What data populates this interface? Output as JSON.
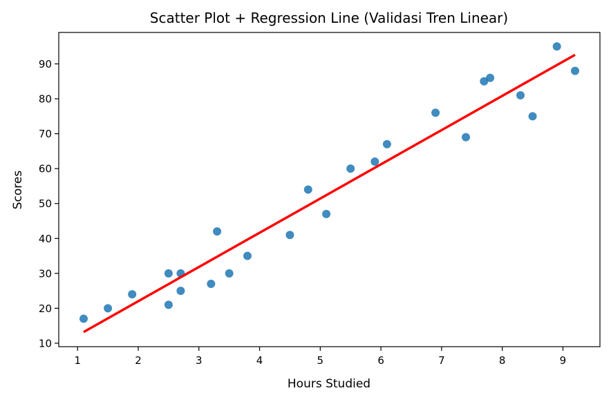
{
  "chart_data": {
    "type": "scatter",
    "title": "Scatter Plot + Regression Line (Validasi Tren Linear)",
    "xlabel": "Hours Studied",
    "ylabel": "Scores",
    "xlim": [
      0.69,
      9.61
    ],
    "ylim": [
      9.0,
      99.0
    ],
    "x_ticks": [
      1,
      2,
      3,
      4,
      5,
      6,
      7,
      8,
      9
    ],
    "y_ticks": [
      10,
      20,
      30,
      40,
      50,
      60,
      70,
      80,
      90
    ],
    "grid": false,
    "series": [
      {
        "type": "scatter",
        "color": "#1f77b4",
        "points": [
          {
            "x": 1.1,
            "y": 17
          },
          {
            "x": 1.5,
            "y": 20
          },
          {
            "x": 1.9,
            "y": 24
          },
          {
            "x": 2.5,
            "y": 21
          },
          {
            "x": 2.5,
            "y": 30
          },
          {
            "x": 2.7,
            "y": 25
          },
          {
            "x": 2.7,
            "y": 30
          },
          {
            "x": 3.2,
            "y": 27
          },
          {
            "x": 3.3,
            "y": 42
          },
          {
            "x": 3.5,
            "y": 30
          },
          {
            "x": 3.8,
            "y": 35
          },
          {
            "x": 4.5,
            "y": 41
          },
          {
            "x": 4.8,
            "y": 54
          },
          {
            "x": 5.1,
            "y": 47
          },
          {
            "x": 5.5,
            "y": 60
          },
          {
            "x": 5.9,
            "y": 62
          },
          {
            "x": 6.1,
            "y": 67
          },
          {
            "x": 6.9,
            "y": 76
          },
          {
            "x": 7.4,
            "y": 69
          },
          {
            "x": 7.7,
            "y": 85
          },
          {
            "x": 7.8,
            "y": 86
          },
          {
            "x": 8.3,
            "y": 81
          },
          {
            "x": 8.5,
            "y": 75
          },
          {
            "x": 8.9,
            "y": 95
          },
          {
            "x": 9.2,
            "y": 88
          }
        ]
      },
      {
        "type": "line",
        "color": "#ff0000",
        "points": [
          {
            "x": 1.1,
            "y": 13.2
          },
          {
            "x": 9.2,
            "y": 92.6
          }
        ]
      }
    ]
  }
}
